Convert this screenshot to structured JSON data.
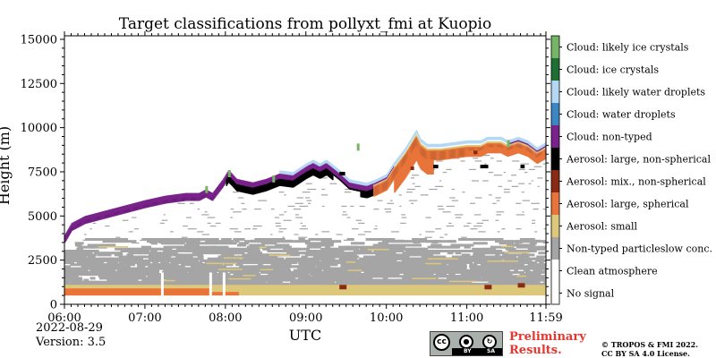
{
  "chart_data": {
    "type": "heatmap",
    "title": "Target classifications from pollyxt_fmi at Kuopio",
    "xlabel": "UTC",
    "ylabel": "Height (m)",
    "xlim_minutes": [
      0,
      359
    ],
    "ylim": [
      0,
      15200
    ],
    "x_ticks": [
      "06:00",
      "07:00",
      "08:00",
      "09:00",
      "10:00",
      "11:00",
      "11:59"
    ],
    "x_tick_minutes": [
      0,
      60,
      120,
      180,
      240,
      300,
      359
    ],
    "y_ticks": [
      0,
      2500,
      5000,
      7500,
      10000,
      12500,
      15000
    ],
    "y_tick_labels": [
      "0",
      "2500",
      "5000",
      "7500",
      "10000",
      "12500",
      "15000"
    ],
    "legend": [
      {
        "label": "Cloud: likely ice crystals",
        "color": "#76b565"
      },
      {
        "label": "Cloud: ice crystals",
        "color": "#1e6f33"
      },
      {
        "label": "Cloud: likely water droplets",
        "color": "#b4d7f3"
      },
      {
        "label": "Cloud: water droplets",
        "color": "#3b86c3"
      },
      {
        "label": "Cloud: non-typed",
        "color": "#7a228b"
      },
      {
        "label": "Aerosol: large, non-spherical",
        "color": "#000000"
      },
      {
        "label": "Aerosol: mix., non-spherical",
        "color": "#8b2a14"
      },
      {
        "label": "Aerosol: large, spherical",
        "color": "#e8743a"
      },
      {
        "label": "Aerosol: small",
        "color": "#ddc77a"
      },
      {
        "label": "Non-typed particleslow conc.",
        "color": "#a5a5a5"
      },
      {
        "label": "Clean atmosphere",
        "color": "#ffffff"
      },
      {
        "label": "No signal",
        "color": "#ffffff"
      }
    ],
    "cloud_top_profile": {
      "x_minutes": [
        0,
        5,
        15,
        30,
        45,
        60,
        75,
        90,
        100,
        105,
        110,
        118,
        122,
        128,
        140,
        150,
        160,
        170,
        180,
        185,
        190,
        195,
        200,
        205,
        212,
        218,
        225,
        232,
        240,
        245,
        250,
        254,
        258,
        262,
        265,
        270,
        280,
        290,
        300,
        310,
        315,
        320,
        325,
        330,
        338,
        345,
        352,
        359
      ],
      "height_m": [
        3950,
        4600,
        5000,
        5300,
        5600,
        5900,
        6150,
        6300,
        6300,
        6500,
        6300,
        7100,
        7600,
        7100,
        6900,
        7100,
        7400,
        7300,
        7800,
        8000,
        7800,
        8000,
        7700,
        7400,
        6900,
        6800,
        6700,
        6900,
        7200,
        7800,
        8300,
        8700,
        9200,
        9700,
        9200,
        8900,
        8900,
        9000,
        9100,
        9100,
        9300,
        9300,
        9300,
        9100,
        9300,
        9100,
        8700,
        9000
      ]
    },
    "aerosol_layer_top_m": 3300,
    "surface_layer_top_m": 800
  },
  "footer": {
    "date": "2022-08-29",
    "version": "Version: 3.5",
    "prelim_line1": "Preliminary",
    "prelim_line2": "Results.",
    "copyright_line1": "© TROPOS & FMI 2022.",
    "copyright_line2": "CC BY SA 4.0 License."
  },
  "cc_badge": {
    "cc": "cc",
    "by": "BY",
    "sa": "SA"
  }
}
